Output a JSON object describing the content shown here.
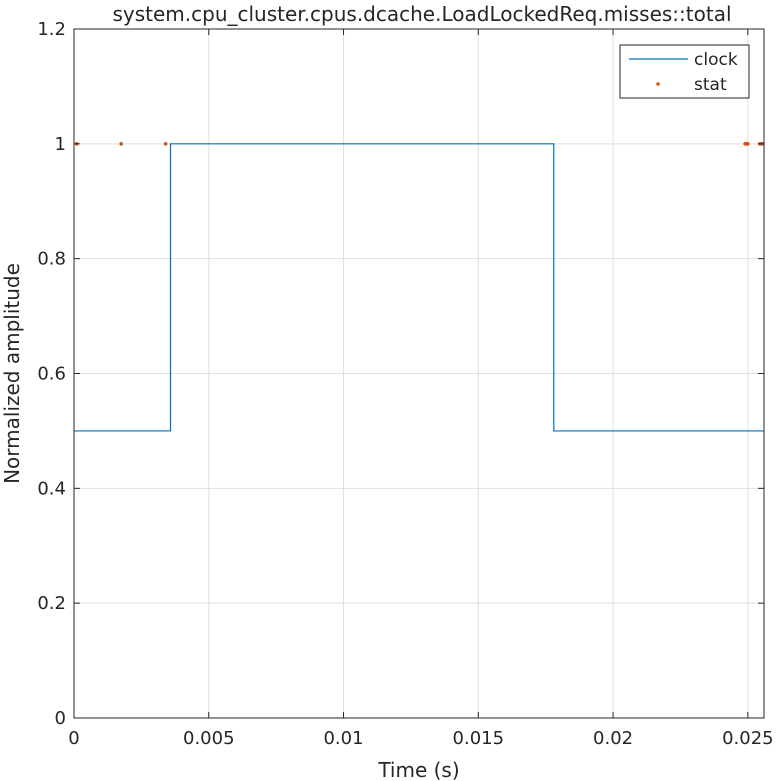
{
  "chart_data": {
    "type": "line",
    "title": "system.cpu_cluster.cpus.dcache.LoadLockedReq.misses::total",
    "xlabel": "Time (s)",
    "ylabel": "Normalized amplitude",
    "xlim": [
      0,
      0.0256
    ],
    "ylim": [
      0,
      1.2
    ],
    "xticks": [
      0,
      0.005,
      0.01,
      0.015,
      0.02,
      0.025
    ],
    "xtick_labels": [
      "0",
      "0.005",
      "0.01",
      "0.015",
      "0.02",
      "0.025"
    ],
    "yticks": [
      0,
      0.2,
      0.4,
      0.6,
      0.8,
      1,
      1.2
    ],
    "ytick_labels": [
      "0",
      "0.2",
      "0.4",
      "0.6",
      "0.8",
      "1",
      "1.2"
    ],
    "grid": true,
    "legend_position": "top-right",
    "series": [
      {
        "name": "clock",
        "kind": "line",
        "color": "#0072BD",
        "x": [
          0,
          0.00358,
          0.00358,
          0.0178,
          0.0178,
          0.0256
        ],
        "y": [
          0.5,
          0.5,
          1.0,
          1.0,
          0.5,
          0.5
        ]
      },
      {
        "name": "stat",
        "kind": "scatter",
        "color": "#D95319",
        "x": [
          0.0001,
          0.00175,
          0.0034,
          0.0249,
          0.02495,
          0.025,
          0.02545,
          0.0255,
          0.02555
        ],
        "y": [
          1,
          1,
          1,
          1,
          1,
          1,
          1,
          1,
          1
        ]
      }
    ]
  }
}
